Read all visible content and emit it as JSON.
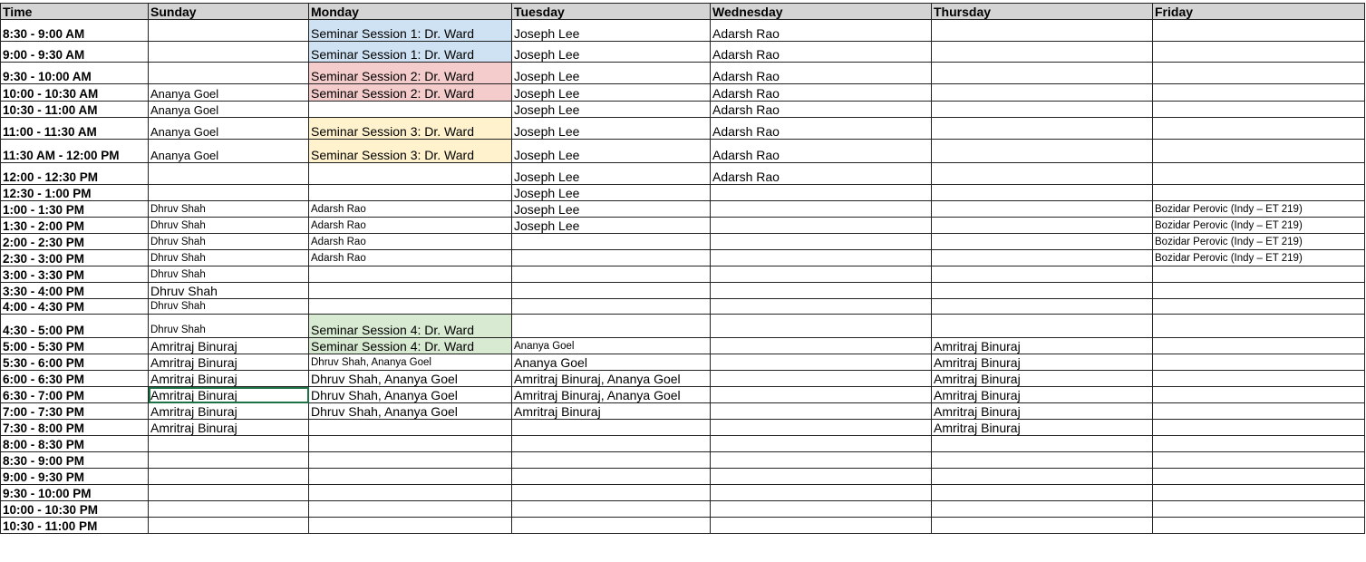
{
  "headers": [
    "Time",
    "Sunday",
    "Monday",
    "Tuesday",
    "Wednesday",
    "Thursday",
    "Friday"
  ],
  "colors": {
    "session1": "#cfe2f3",
    "session2": "#f4cccc",
    "session3": "#fff2cc",
    "session4": "#d9ead3",
    "header": "#d4d4d4",
    "selection": "#1e7145"
  },
  "selected_cell": {
    "time": "6:30 - 7:00 PM",
    "day": "Sunday"
  },
  "rows": [
    {
      "time": "8:30 - 9:00 AM",
      "cells": [
        "",
        {
          "text": "Seminar Session 1: Dr. Ward",
          "fill": "#cfe2f3"
        },
        "Joseph Lee",
        "Adarsh Rao",
        "",
        ""
      ]
    },
    {
      "time": "9:00 - 9:30 AM",
      "cells": [
        "",
        {
          "text": "Seminar Session 1: Dr. Ward",
          "fill": "#cfe2f3"
        },
        "Joseph Lee",
        "Adarsh Rao",
        "",
        ""
      ]
    },
    {
      "time": "9:30 - 10:00 AM",
      "cells": [
        "",
        {
          "text": "Seminar Session 2: Dr. Ward",
          "fill": "#f4cccc"
        },
        "Joseph Lee",
        "Adarsh Rao",
        "",
        ""
      ]
    },
    {
      "time": "10:00 - 10:30 AM",
      "cells": [
        "Ananya Goel",
        {
          "text": "Seminar Session 2: Dr. Ward",
          "fill": "#f4cccc"
        },
        "Joseph Lee",
        "Adarsh Rao",
        "",
        ""
      ]
    },
    {
      "time": "10:30 - 11:00 AM",
      "cells": [
        "Ananya Goel",
        "",
        "Joseph Lee",
        "Adarsh Rao",
        "",
        ""
      ]
    },
    {
      "time": "11:00 - 11:30 AM",
      "cells": [
        "Ananya Goel",
        {
          "text": "Seminar Session 3: Dr. Ward",
          "fill": "#fff2cc"
        },
        "Joseph Lee",
        "Adarsh Rao",
        "",
        ""
      ]
    },
    {
      "time": "11:30 AM - 12:00 PM",
      "cells": [
        "Ananya Goel",
        {
          "text": "Seminar Session 3: Dr. Ward",
          "fill": "#fff2cc"
        },
        "Joseph Lee",
        "Adarsh Rao",
        "",
        ""
      ]
    },
    {
      "time": "12:00 - 12:30 PM",
      "cells": [
        "",
        "",
        "Joseph Lee",
        "Adarsh Rao",
        "",
        ""
      ]
    },
    {
      "time": "12:30 - 1:00 PM",
      "cells": [
        "",
        "",
        "Joseph Lee",
        "",
        "",
        ""
      ]
    },
    {
      "time": "1:00 - 1:30 PM",
      "cells": [
        "Dhruv Shah",
        "Adarsh Rao",
        "Joseph Lee",
        "",
        "",
        "Bozidar Perovic (Indy – ET 219)"
      ]
    },
    {
      "time": "1:30 - 2:00 PM",
      "cells": [
        "Dhruv Shah",
        "Adarsh Rao",
        "Joseph Lee",
        "",
        "",
        "Bozidar Perovic (Indy – ET 219)"
      ]
    },
    {
      "time": "2:00 - 2:30 PM",
      "cells": [
        "Dhruv Shah",
        "Adarsh Rao",
        "",
        "",
        "",
        "Bozidar Perovic (Indy – ET 219)"
      ]
    },
    {
      "time": "2:30 - 3:00 PM",
      "cells": [
        "Dhruv Shah",
        "Adarsh Rao",
        "",
        "",
        "",
        "Bozidar Perovic (Indy – ET 219)"
      ]
    },
    {
      "time": "3:00 - 3:30 PM",
      "cells": [
        "Dhruv Shah",
        "",
        "",
        "",
        "",
        ""
      ]
    },
    {
      "time": "3:30 - 4:00 PM",
      "cells": [
        "Dhruv Shah",
        "",
        "",
        "",
        "",
        ""
      ]
    },
    {
      "time": "4:00 - 4:30 PM",
      "cells": [
        "Dhruv Shah",
        "",
        "",
        "",
        "",
        ""
      ]
    },
    {
      "time": "4:30 - 5:00 PM",
      "cells": [
        "Dhruv Shah",
        {
          "text": "Seminar Session 4: Dr. Ward",
          "fill": "#d9ead3"
        },
        "",
        "",
        "",
        ""
      ]
    },
    {
      "time": "5:00 - 5:30 PM",
      "cells": [
        "Amritraj Binuraj",
        {
          "text": "Seminar Session 4: Dr. Ward",
          "fill": "#d9ead3"
        },
        "Ananya Goel",
        "",
        "Amritraj Binuraj",
        ""
      ]
    },
    {
      "time": "5:30 - 6:00 PM",
      "cells": [
        "Amritraj Binuraj",
        "Dhruv Shah, Ananya Goel",
        "Ananya Goel",
        "",
        "Amritraj Binuraj",
        ""
      ]
    },
    {
      "time": "6:00 - 6:30 PM",
      "cells": [
        "Amritraj Binuraj",
        "Dhruv Shah, Ananya Goel",
        "Amritraj Binuraj, Ananya Goel",
        "",
        "Amritraj Binuraj",
        ""
      ]
    },
    {
      "time": "6:30 - 7:00 PM",
      "cells": [
        "Amritraj Binuraj",
        "Dhruv Shah, Ananya Goel",
        "Amritraj Binuraj, Ananya Goel",
        "",
        "Amritraj Binuraj",
        ""
      ]
    },
    {
      "time": "7:00 - 7:30 PM",
      "cells": [
        "Amritraj Binuraj",
        "Dhruv Shah, Ananya Goel",
        "Amritraj Binuraj",
        "",
        "Amritraj Binuraj",
        ""
      ]
    },
    {
      "time": "7:30 - 8:00 PM",
      "cells": [
        "Amritraj Binuraj",
        "",
        "",
        "",
        "Amritraj Binuraj",
        ""
      ]
    },
    {
      "time": "8:00 - 8:30 PM",
      "cells": [
        "",
        "",
        "",
        "",
        "",
        ""
      ]
    },
    {
      "time": "8:30 - 9:00 PM",
      "cells": [
        "",
        "",
        "",
        "",
        "",
        ""
      ]
    },
    {
      "time": "9:00 - 9:30 PM",
      "cells": [
        "",
        "",
        "",
        "",
        "",
        ""
      ]
    },
    {
      "time": "9:30 - 10:00 PM",
      "cells": [
        "",
        "",
        "",
        "",
        "",
        ""
      ]
    },
    {
      "time": "10:00 - 10:30 PM",
      "cells": [
        "",
        "",
        "",
        "",
        "",
        ""
      ]
    },
    {
      "time": "10:30 - 11:00 PM",
      "cells": [
        "",
        "",
        "",
        "",
        "",
        ""
      ]
    }
  ]
}
